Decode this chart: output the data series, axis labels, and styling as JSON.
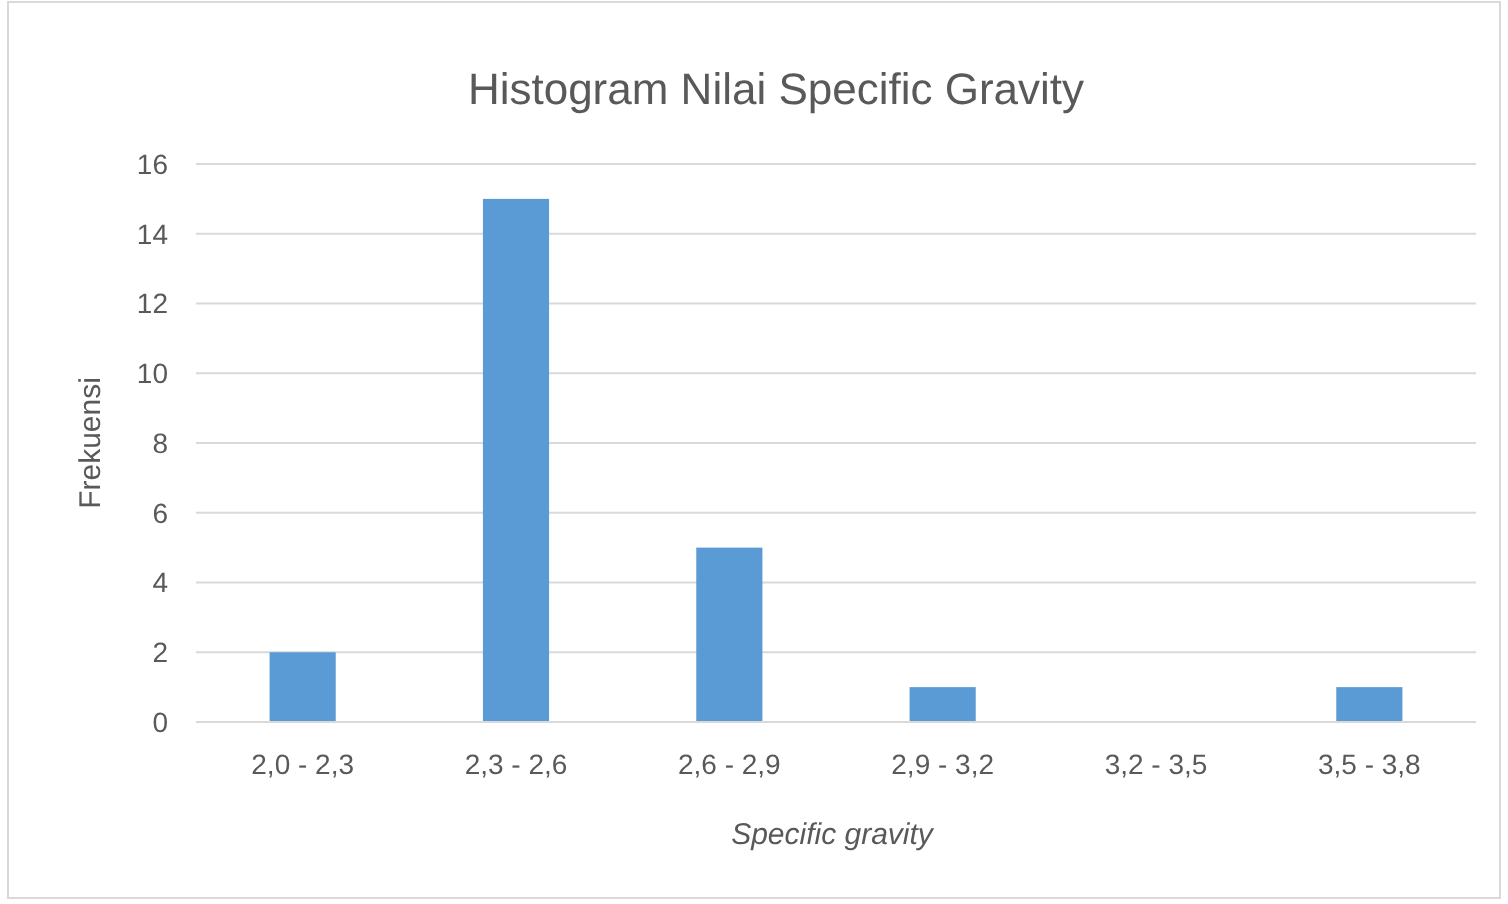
{
  "chart_data": {
    "type": "bar",
    "title": "Histogram Nilai Specific Gravity",
    "xlabel": "Specific gravity",
    "ylabel": "Frekuensi",
    "categories": [
      "2,0 - 2,3",
      "2,3 - 2,6",
      "2,6 - 2,9",
      "2,9 - 3,2",
      "3,2 - 3,5",
      "3,5 - 3,8"
    ],
    "values": [
      2,
      15,
      5,
      1,
      0,
      1
    ],
    "color": "#5b9bd5",
    "ylim": [
      0,
      16
    ],
    "yticks": [
      0,
      2,
      4,
      6,
      8,
      10,
      12,
      14,
      16
    ],
    "grid": "y"
  }
}
